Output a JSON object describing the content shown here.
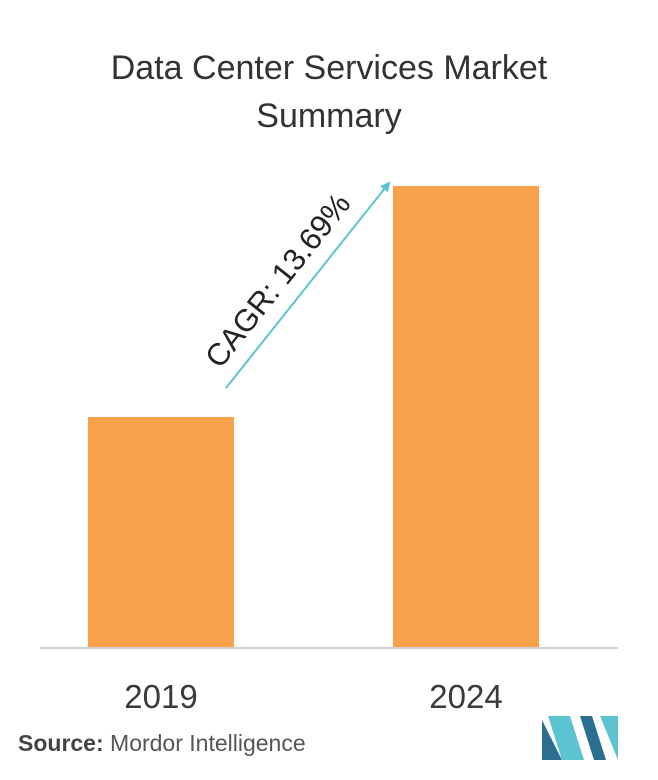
{
  "title_line1": "Data Center Services Market",
  "title_line2": "Summary",
  "chart_data": {
    "type": "bar",
    "title": "Data Center Services Market Summary",
    "categories": [
      "2019",
      "2024"
    ],
    "values": [
      0.5,
      1.0
    ],
    "annotation": "CAGR: 13.69%",
    "xlabel": "",
    "ylabel": "",
    "grid": false,
    "legend": "none",
    "bar_color": "#F9A04B",
    "arrow_color": "#5BC4D0"
  },
  "source": {
    "label": "Source:",
    "text": "Mordor Intelligence"
  },
  "logo": {
    "icon": "mordor-intelligence-logo",
    "colors": [
      "#2B6E8F",
      "#5BC4D0"
    ]
  }
}
